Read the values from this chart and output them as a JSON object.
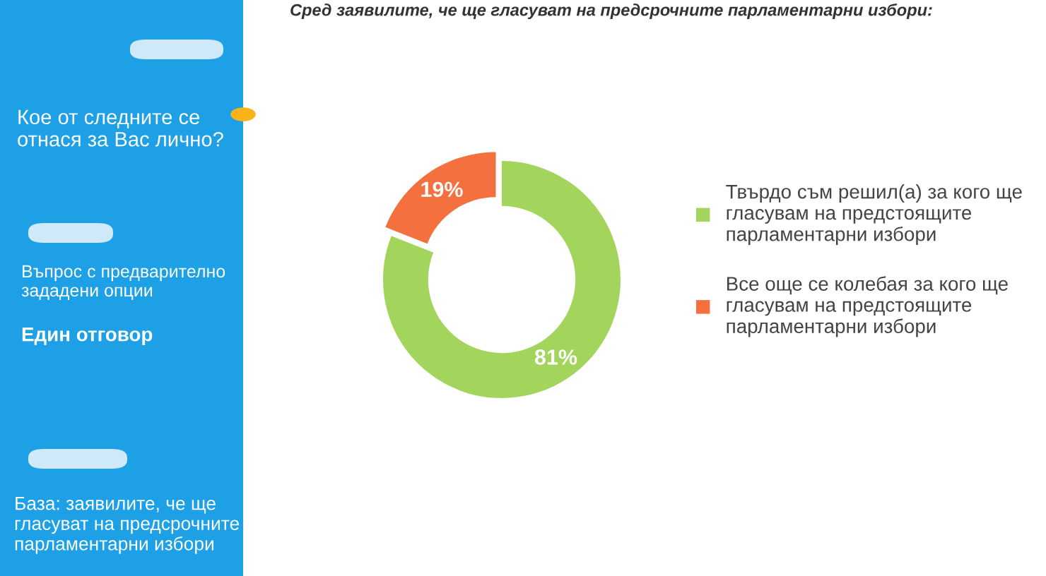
{
  "chart_data": {
    "type": "donut",
    "title": "Сред заявилите, че ще гласуват на предсрочните парламентарни избори:",
    "categories": [
      "Твърдо съм решил(а) за кого ще\nгласувам на предстоящите\nпарламентарни избори",
      "Все още се колебая за кого ще\nгласувам на предстоящите\nпарламентарни избори"
    ],
    "values": [
      81,
      19
    ],
    "colors": [
      "#a3d45b",
      "#f4703f"
    ],
    "value_labels": [
      "81%",
      "19%"
    ],
    "legend": "right",
    "annotations": [
      "Кое от следните се\nотнася за Вас лично?",
      "Въпрос с предварително\nзададени опции",
      "Един отговор",
      "База: заявилите, че ще\nгласуват на предсрочните\nпарламентарни избори"
    ]
  }
}
